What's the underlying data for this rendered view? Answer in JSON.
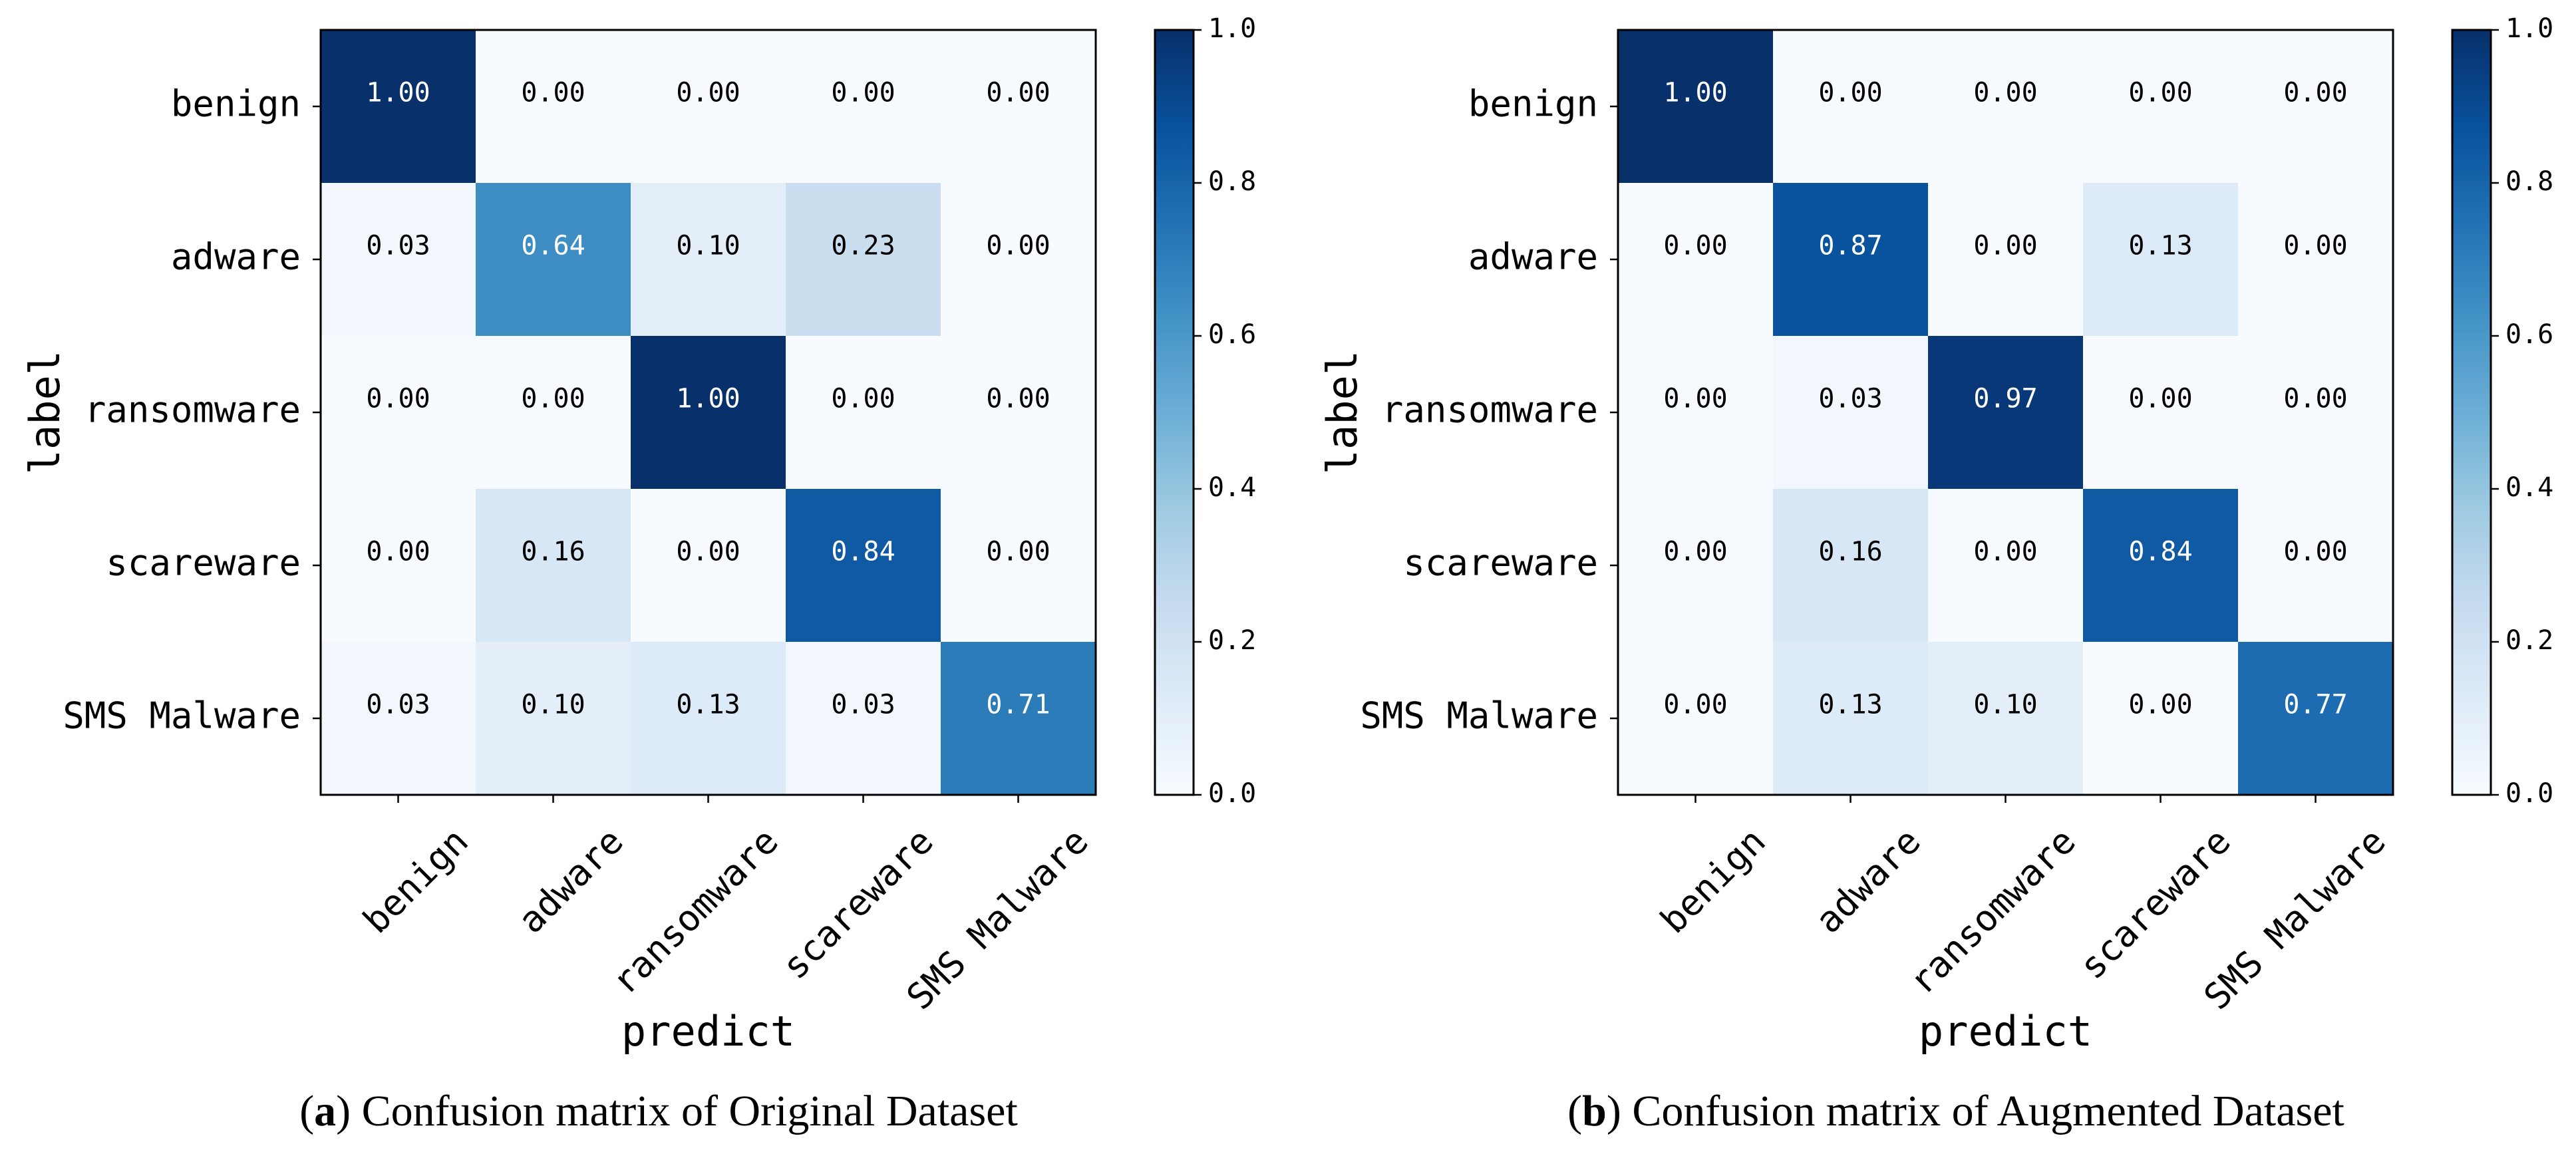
{
  "chart_data": [
    {
      "type": "heatmap",
      "caption_letter": "a",
      "caption_text": ") Confusion matrix of Original Dataset",
      "caption_open": "(",
      "xlabel": "predict",
      "ylabel": "label",
      "x_categories": [
        "benign",
        "adware",
        "ransomware",
        "scareware",
        "SMS Malware"
      ],
      "y_categories": [
        "benign",
        "adware",
        "ransomware",
        "scareware",
        "SMS Malware"
      ],
      "values": [
        [
          1.0,
          0.0,
          0.0,
          0.0,
          0.0
        ],
        [
          0.03,
          0.64,
          0.1,
          0.23,
          0.0
        ],
        [
          0.0,
          0.0,
          1.0,
          0.0,
          0.0
        ],
        [
          0.0,
          0.16,
          0.0,
          0.84,
          0.0
        ],
        [
          0.03,
          0.1,
          0.13,
          0.03,
          0.71
        ]
      ],
      "colorbar": {
        "range": [
          0.0,
          1.0
        ],
        "ticks": [
          "0.0",
          "0.2",
          "0.4",
          "0.6",
          "0.8",
          "1.0"
        ],
        "colormap": "Blues"
      }
    },
    {
      "type": "heatmap",
      "caption_letter": "b",
      "caption_text": ") Confusion matrix of Augmented Dataset",
      "caption_open": "(",
      "xlabel": "predict",
      "ylabel": "label",
      "x_categories": [
        "benign",
        "adware",
        "ransomware",
        "scareware",
        "SMS Malware"
      ],
      "y_categories": [
        "benign",
        "adware",
        "ransomware",
        "scareware",
        "SMS Malware"
      ],
      "values": [
        [
          1.0,
          0.0,
          0.0,
          0.0,
          0.0
        ],
        [
          0.0,
          0.87,
          0.0,
          0.13,
          0.0
        ],
        [
          0.0,
          0.03,
          0.97,
          0.0,
          0.0
        ],
        [
          0.0,
          0.16,
          0.0,
          0.84,
          0.0
        ],
        [
          0.0,
          0.13,
          0.1,
          0.0,
          0.77
        ]
      ],
      "colorbar": {
        "range": [
          0.0,
          1.0
        ],
        "ticks": [
          "0.0",
          "0.2",
          "0.4",
          "0.6",
          "0.8",
          "1.0"
        ],
        "colormap": "Blues"
      }
    }
  ]
}
